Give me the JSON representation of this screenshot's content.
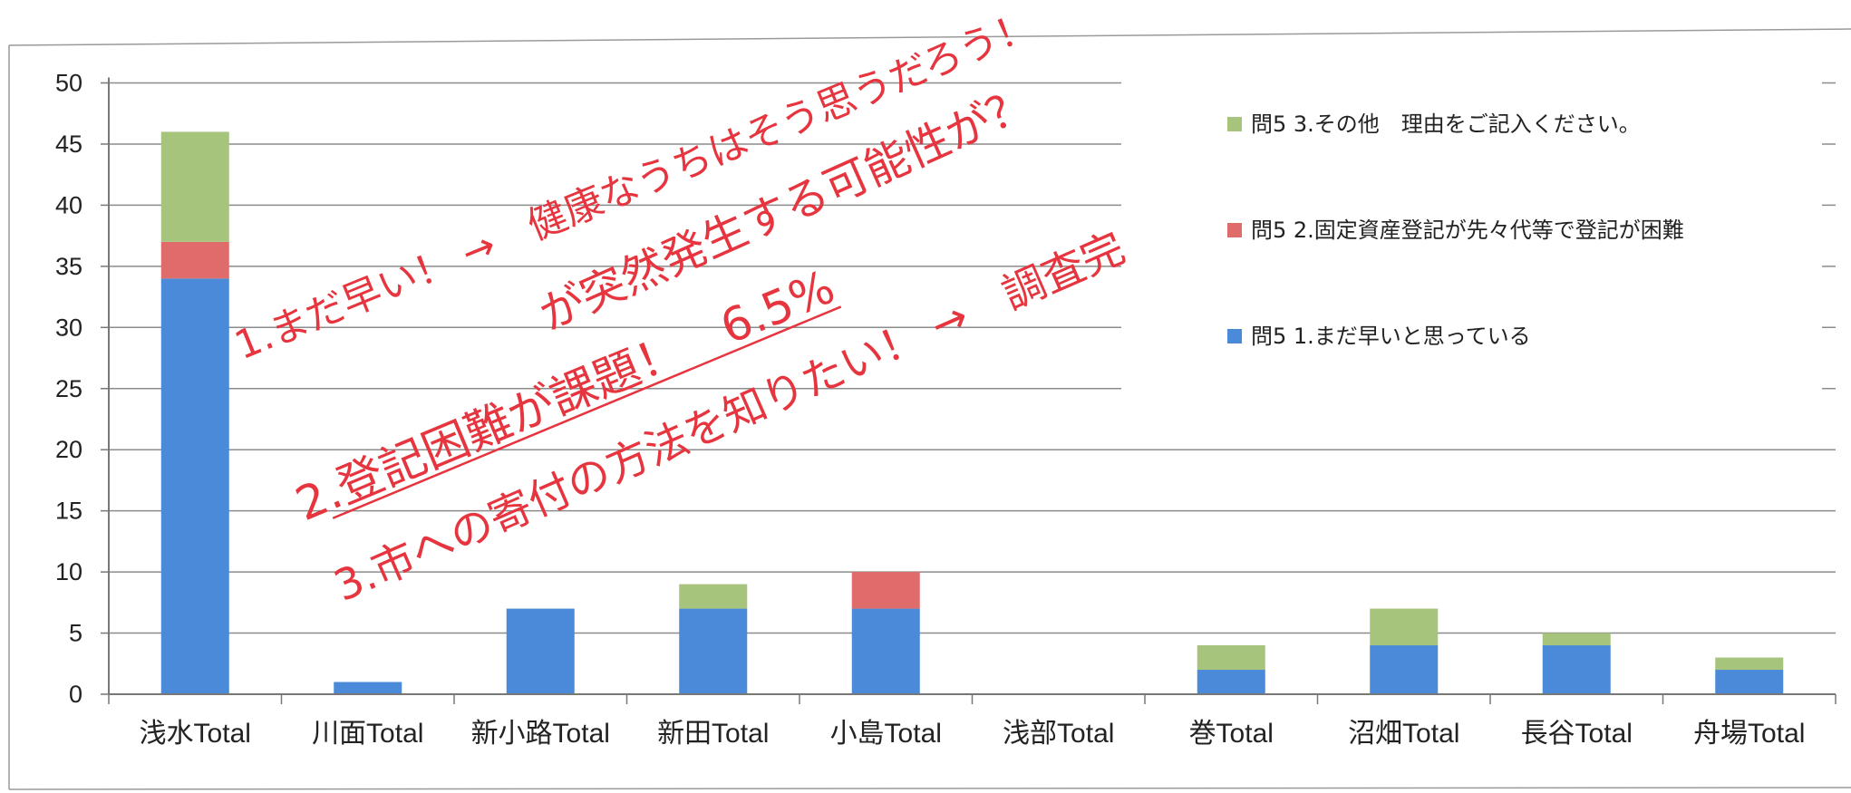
{
  "chart_data": {
    "type": "bar",
    "stacked": true,
    "categories": [
      "浅水Total",
      "川面Total",
      "新小路Total",
      "新田Total",
      "小島Total",
      "浅部Total",
      "巻Total",
      "沼畑Total",
      "長谷Total",
      "舟場Total"
    ],
    "series": [
      {
        "name": "問5 1.まだ早いと思っている",
        "values": [
          34,
          1,
          7,
          7,
          7,
          0,
          2,
          4,
          4,
          2
        ],
        "color": "#4a8ad9"
      },
      {
        "name": "問5 2.固定資産登記が先々代等で登記が困難",
        "values": [
          3,
          0,
          0,
          0,
          3,
          0,
          0,
          0,
          0,
          0
        ],
        "color": "#df6b6b"
      },
      {
        "name": "問5 3.その他　理由をご記入ください。",
        "values": [
          9,
          0,
          0,
          2,
          0,
          0,
          2,
          3,
          1,
          1
        ],
        "color": "#a6c47c"
      }
    ],
    "ylim": [
      0,
      50
    ],
    "yticks": [
      0,
      5,
      10,
      15,
      20,
      25,
      30,
      35,
      40,
      45,
      50
    ],
    "grid": true,
    "legend_position": "top-right"
  },
  "annotations": {
    "color": "#e6353e",
    "line1": "1.まだ早い！ →　健康なうちはそう思うだろう！",
    "line2": "が突然発生する可能性が？",
    "line3": "2.登記困難が課題！　6.5%",
    "line4": "3.市への寄付の方法を知りたい！ →　調査完"
  }
}
